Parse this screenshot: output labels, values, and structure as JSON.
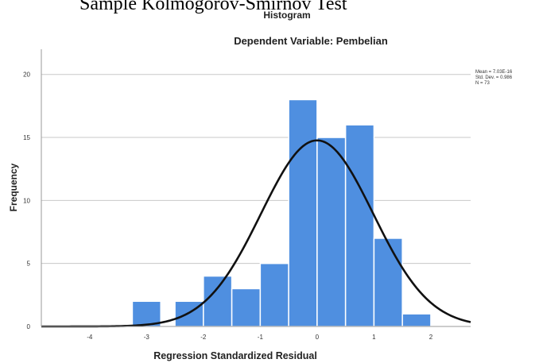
{
  "heading": "Sample Kolmogorov-Smirnov Test",
  "chart_data": {
    "type": "bar",
    "title": "Histogram",
    "subtitle": "Dependent Variable: Pembelian",
    "xlabel": "Regression Standardized Residual",
    "ylabel": "Frequency",
    "xlim": [
      -4.85,
      2.7
    ],
    "ylim": [
      0,
      22
    ],
    "xticks": [
      -4,
      -3,
      -2,
      -1,
      0,
      1,
      2
    ],
    "yticks": [
      0,
      5,
      10,
      15,
      20
    ],
    "grid": "horizontal",
    "bins": [
      {
        "from": -3.25,
        "to": -2.75,
        "value": 2
      },
      {
        "from": -2.5,
        "to": -2.0,
        "value": 2
      },
      {
        "from": -2.0,
        "to": -1.5,
        "value": 4
      },
      {
        "from": -1.5,
        "to": -1.0,
        "value": 3
      },
      {
        "from": -1.0,
        "to": -0.5,
        "value": 5
      },
      {
        "from": -0.5,
        "to": 0.0,
        "value": 18
      },
      {
        "from": 0.0,
        "to": 0.5,
        "value": 15
      },
      {
        "from": 0.5,
        "to": 1.0,
        "value": 16
      },
      {
        "from": 1.0,
        "to": 1.5,
        "value": 7
      },
      {
        "from": 1.5,
        "to": 2.0,
        "value": 1
      }
    ],
    "normal_curve": {
      "mean": 0,
      "sd": 0.986,
      "n": 73,
      "bin_width": 0.5
    },
    "stats": [
      "Mean = 7.03E-16",
      "Std. Dev. = 0.986",
      "N = 73"
    ],
    "colors": {
      "bar": "#4f8fe0",
      "bar_edge": "#ffffff",
      "curve": "#111111",
      "grid": "#c8c8c8",
      "axis": "#9a9a9a"
    }
  }
}
